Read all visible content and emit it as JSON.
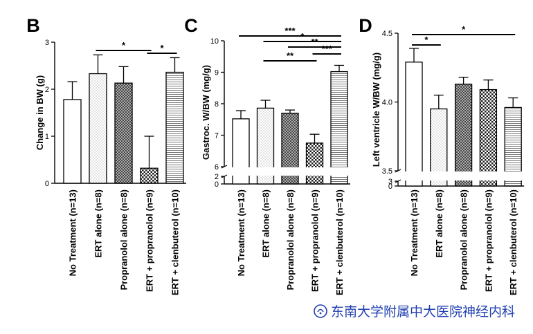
{
  "watermark": "东南大学附属中大医院神经内科",
  "colors": {
    "ink": "#000000",
    "watermark": "#1f3fb0"
  },
  "chart_data": [
    {
      "panel": "B",
      "type": "bar",
      "ylabel": "Change in BW (g)",
      "ylim": [
        0,
        3
      ],
      "yticks": [
        "0",
        "1",
        "2",
        "3"
      ],
      "categories": [
        "No Treatment (n=13)",
        "ERT alone (n=8)",
        "Propranolol alone (n=8)",
        "ERT + propranolol (n=9)",
        "ERT + clenbuterol (n=10)"
      ],
      "fills": [
        "white",
        "dots",
        "cross",
        "checker",
        "hlines"
      ],
      "values": [
        1.78,
        2.33,
        2.13,
        0.32,
        2.36
      ],
      "errors": [
        0.38,
        0.4,
        0.35,
        0.68,
        0.31
      ],
      "annotations": [
        {
          "from": 1,
          "to": 3,
          "label": "*"
        },
        {
          "from": 3,
          "to": 4,
          "label": "*"
        }
      ]
    },
    {
      "panel": "C",
      "type": "bar",
      "ylabel": "Gastroc. W/BW (mg/g)",
      "ylim": [
        0,
        10
      ],
      "axis_break": [
        2,
        6
      ],
      "yticks": [
        "0",
        "2",
        "6",
        "7",
        "8",
        "9",
        "10"
      ],
      "categories": [
        "No Treatment (n=13)",
        "ERT alone (n=8)",
        "Propranolol alone (n=8)",
        "ERT + propranolol (n=9)",
        "ERT + clenbuterol (n=10)"
      ],
      "fills": [
        "white",
        "dots",
        "cross",
        "checker",
        "hlines"
      ],
      "values": [
        7.52,
        7.86,
        7.7,
        6.75,
        9.02
      ],
      "errors": [
        0.26,
        0.25,
        0.1,
        0.28,
        0.2
      ],
      "annotations": [
        {
          "from": 0,
          "to": 4,
          "label": "***"
        },
        {
          "from": 1,
          "to": 4,
          "label": "*"
        },
        {
          "from": 2,
          "to": 4,
          "label": "**"
        },
        {
          "from": 3,
          "to": 4,
          "label": "***"
        },
        {
          "from": 1,
          "to": 3,
          "label": "**"
        }
      ]
    },
    {
      "panel": "D",
      "type": "bar",
      "ylabel": "Left ventricle W/BW (mg/g)",
      "ylim": [
        0,
        4.5
      ],
      "axis_break": [
        3,
        3.5
      ],
      "yticks": [
        "0",
        "3",
        "3.5",
        "4.0",
        "4.5"
      ],
      "categories": [
        "No Treatment (n=13)",
        "ERT alone (n=8)",
        "Propranolol alone (n=8)",
        "ERT + propranolol (n=9)",
        "ERT + clenbuterol (n=10)"
      ],
      "fills": [
        "white",
        "dots",
        "cross",
        "checker",
        "hlines"
      ],
      "values": [
        4.29,
        3.95,
        4.13,
        4.09,
        3.96
      ],
      "errors": [
        0.1,
        0.1,
        0.05,
        0.07,
        0.07
      ],
      "annotations": [
        {
          "from": 0,
          "to": 1,
          "label": "*"
        },
        {
          "from": 0,
          "to": 4,
          "label": "*"
        }
      ]
    }
  ]
}
